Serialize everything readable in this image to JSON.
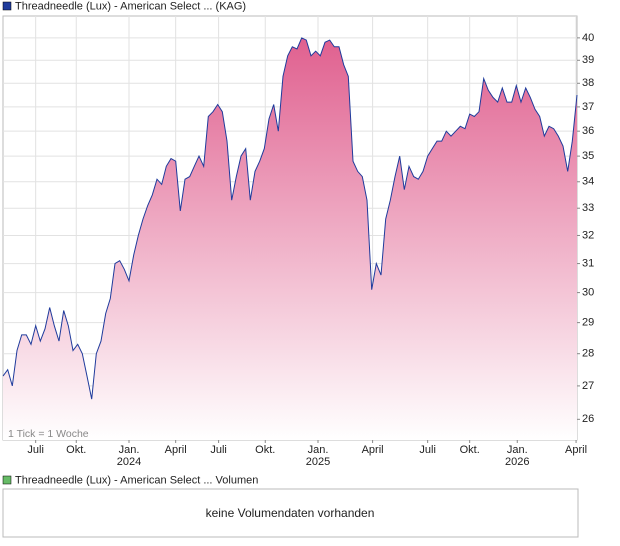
{
  "chart_data": {
    "type": "area",
    "title": "Threadneedle (Lux) - American Select ... (KAG)",
    "annotation": "1 Tick = 1 Woche",
    "volume_title": "Threadneedle (Lux) - American Select ... Volumen",
    "volume_note": "keine Volumendaten vorhanden",
    "color": "#1f3b9c",
    "fill_color": "#e0608f",
    "legend_color": "#1f3b9c",
    "volume_color": "#66bb66",
    "yscale": "log",
    "grid": true,
    "xlim": [
      0,
      123
    ],
    "ylim": [
      25.4,
      41
    ],
    "yticks": [
      26,
      27,
      28,
      29,
      30,
      31,
      32,
      33,
      34,
      35,
      36,
      37,
      38,
      39,
      40
    ],
    "xticks": [
      {
        "value": 7,
        "label": "Juli"
      },
      {
        "value": 15.7,
        "label": "Okt."
      },
      {
        "value": 27,
        "label": "Jan.",
        "year": "2024"
      },
      {
        "value": 37,
        "label": "April"
      },
      {
        "value": 46.2,
        "label": "Juli"
      },
      {
        "value": 56.2,
        "label": "Okt."
      },
      {
        "value": 67.5,
        "label": "Jan.",
        "year": "2025"
      },
      {
        "value": 79.2,
        "label": "April"
      },
      {
        "value": 91,
        "label": "Juli"
      },
      {
        "value": 100,
        "label": "Okt."
      },
      {
        "value": 110.2,
        "label": "Jan.",
        "year": "2026"
      },
      {
        "value": 122.8,
        "label": "April"
      }
    ],
    "values": [
      27.3,
      27.5,
      27.0,
      28.1,
      28.6,
      28.6,
      28.3,
      28.9,
      28.4,
      28.8,
      29.5,
      28.9,
      28.4,
      29.4,
      28.9,
      28.1,
      28.3,
      28.0,
      27.3,
      26.6,
      28.0,
      28.4,
      29.3,
      29.8,
      31.0,
      31.1,
      30.8,
      30.4,
      31.3,
      32.0,
      32.6,
      33.1,
      33.5,
      34.1,
      33.9,
      34.6,
      34.9,
      34.8,
      32.9,
      34.1,
      34.2,
      34.6,
      35.0,
      34.6,
      36.6,
      36.8,
      37.1,
      36.8,
      35.6,
      33.3,
      34.2,
      35.0,
      35.3,
      33.3,
      34.4,
      34.8,
      35.3,
      36.5,
      37.1,
      36.0,
      38.3,
      39.2,
      39.6,
      39.5,
      40.0,
      39.9,
      39.2,
      39.4,
      39.2,
      39.8,
      39.9,
      39.6,
      39.6,
      38.8,
      38.3,
      34.8,
      34.4,
      34.2,
      33.3,
      30.1,
      31.0,
      30.6,
      32.6,
      33.3,
      34.2,
      35.0,
      33.7,
      34.6,
      34.2,
      34.1,
      34.4,
      35.0,
      35.3,
      35.6,
      35.6,
      36.0,
      35.8,
      36.0,
      36.2,
      36.1,
      36.7,
      36.6,
      36.8,
      38.2,
      37.7,
      37.4,
      37.2,
      37.8,
      37.2,
      37.2,
      37.9,
      37.2,
      37.8,
      37.4,
      36.9,
      36.6,
      35.8,
      36.2,
      36.1,
      35.8,
      35.4,
      34.4,
      35.6,
      37.5
    ]
  }
}
